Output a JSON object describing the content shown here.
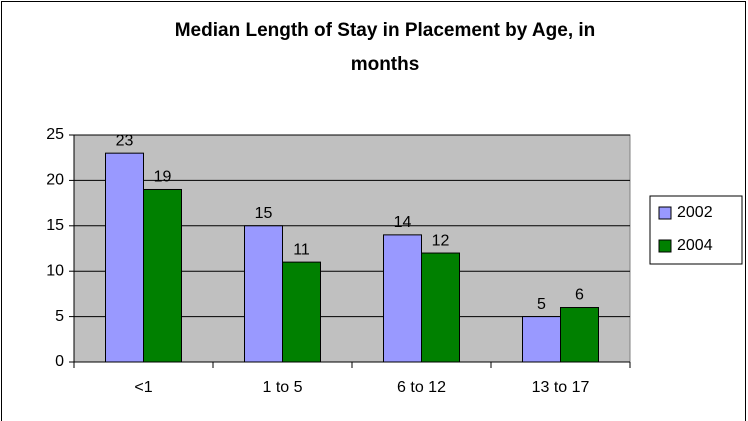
{
  "chart_data": {
    "type": "bar",
    "title": "Median Length of Stay in Placement by Age, in months",
    "categories": [
      "<1",
      "1 to 5",
      "6 to 12",
      "13 to 17"
    ],
    "series": [
      {
        "name": "2002",
        "color": "#9999ff",
        "values": [
          23,
          15,
          14,
          5
        ]
      },
      {
        "name": "2004",
        "color": "#008000",
        "values": [
          19,
          11,
          12,
          6
        ]
      }
    ],
    "ylim": [
      0,
      25
    ],
    "yticks": [
      0,
      5,
      10,
      15,
      20,
      25
    ],
    "grid": true,
    "legend": "right"
  }
}
